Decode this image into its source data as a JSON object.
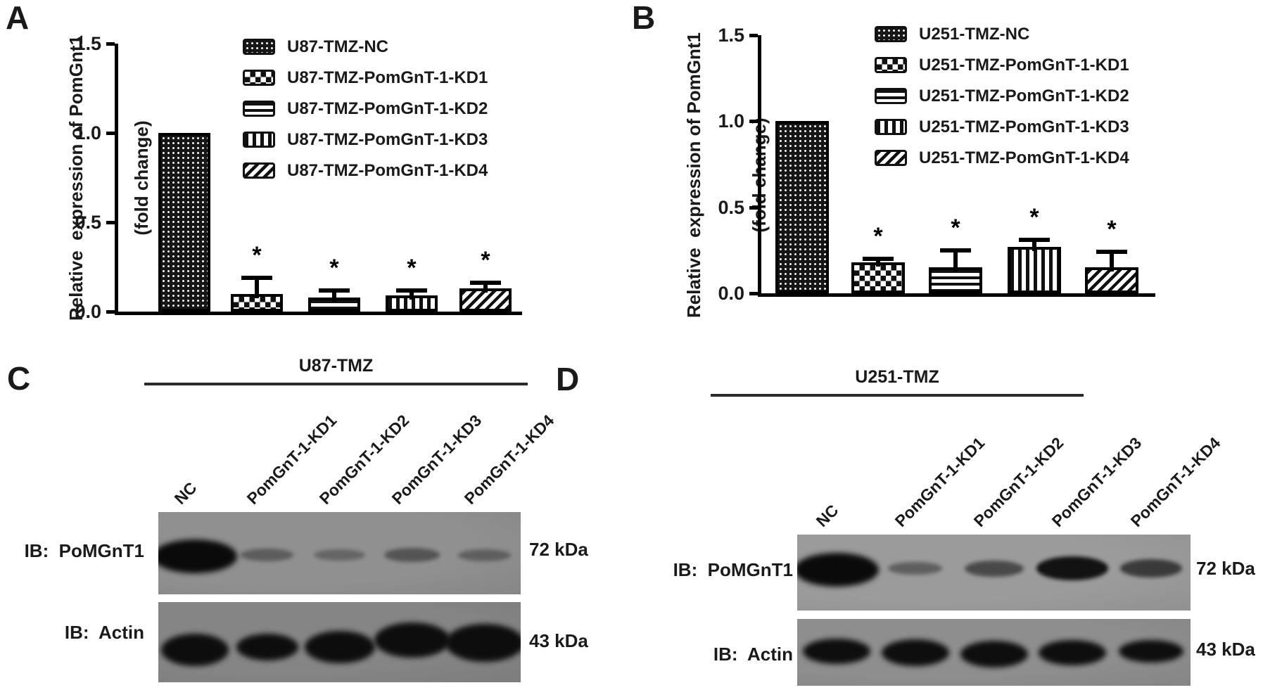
{
  "panels": {
    "a": {
      "label": "A",
      "ylabel_line1": "Relative  expression of PomGnt1",
      "ylabel_line2": "(fold change)",
      "yticks": [
        "1.5",
        "1.0",
        "0.5",
        "0.0"
      ],
      "legend": [
        "U87-TMZ-NC",
        "U87-TMZ-PomGnT-1-KD1",
        "U87-TMZ-PomGnT-1-KD2",
        "U87-TMZ-PomGnT-1-KD3",
        "U87-TMZ-PomGnT-1-KD4"
      ]
    },
    "b": {
      "label": "B",
      "ylabel_line1": "Relative  expression of PomGnt1",
      "ylabel_line2": "(fold change)",
      "yticks": [
        "1.5",
        "1.0",
        "0.5",
        "0.0"
      ],
      "legend": [
        "U251-TMZ-NC",
        "U251-TMZ-PomGnT-1-KD1",
        "U251-TMZ-PomGnT-1-KD2",
        "U251-TMZ-PomGnT-1-KD3",
        "U251-TMZ-PomGnT-1-KD4"
      ]
    },
    "c": {
      "label": "C",
      "title": "U87-TMZ",
      "lanes": [
        "NC",
        "PomGnT-1-KD1",
        "PomGnT-1-KD2",
        "PomGnT-1-KD3",
        "PomGnT-1-KD4"
      ],
      "rows": [
        {
          "label": "IB:  PoMGnT1",
          "marker": "72 kDa",
          "bands": [
            1.0,
            0.32,
            0.26,
            0.38,
            0.3
          ]
        },
        {
          "label": "IB:  Actin",
          "marker": "43 kDa",
          "bands": [
            1.0,
            1.0,
            1.0,
            1.0,
            1.0
          ]
        }
      ]
    },
    "d": {
      "label": "D",
      "title": "U251-TMZ",
      "lanes": [
        "NC",
        "PomGnT-1-KD1",
        "PomGnT-1-KD2",
        "PomGnT-1-KD3",
        "PomGnT-1-KD4"
      ],
      "rows": [
        {
          "label": "IB:  PoMGnT1",
          "marker": "72 kDa",
          "bands": [
            1.0,
            0.35,
            0.5,
            0.88,
            0.6
          ]
        },
        {
          "label": "IB:  Actin",
          "marker": "43 kDa",
          "bands": [
            1.0,
            1.0,
            1.0,
            1.0,
            1.0
          ]
        }
      ]
    }
  },
  "chart_data": [
    {
      "type": "bar",
      "panel": "A",
      "title": "",
      "categories": [
        "U87-TMZ-NC",
        "U87-TMZ-PomGnT-1-KD1",
        "U87-TMZ-PomGnT-1-KD2",
        "U87-TMZ-PomGnT-1-KD3",
        "U87-TMZ-PomGnT-1-KD4"
      ],
      "values": [
        1.0,
        0.1,
        0.08,
        0.09,
        0.13
      ],
      "errors": [
        0,
        0.09,
        0.04,
        0.03,
        0.03
      ],
      "significance": [
        "",
        "*",
        "*",
        "*",
        "*"
      ],
      "bar_patterns": [
        "fine-dots",
        "checker",
        "horizontal-lines",
        "vertical-lines",
        "diagonal-lines"
      ],
      "xlabel": "",
      "ylabel": "Relative expression of PomGnt1 (fold change)",
      "ylim": [
        0,
        1.5
      ],
      "yticks": [
        0.0,
        0.5,
        1.0,
        1.5
      ],
      "grid": false,
      "legend_position": "upper-right",
      "bar_color": "black-white-patterns"
    },
    {
      "type": "bar",
      "panel": "B",
      "title": "",
      "categories": [
        "U251-TMZ-NC",
        "U251-TMZ-PomGnT-1-KD1",
        "U251-TMZ-PomGnT-1-KD2",
        "U251-TMZ-PomGnT-1-KD3",
        "U251-TMZ-PomGnT-1-KD4"
      ],
      "values": [
        1.0,
        0.18,
        0.15,
        0.27,
        0.15
      ],
      "errors": [
        0,
        0.02,
        0.1,
        0.04,
        0.09
      ],
      "significance": [
        "",
        "*",
        "*",
        "*",
        "*"
      ],
      "bar_patterns": [
        "fine-dots",
        "checker",
        "horizontal-lines",
        "vertical-lines",
        "diagonal-lines"
      ],
      "xlabel": "",
      "ylabel": "Relative expression of PomGnt1 (fold change)",
      "ylim": [
        0,
        1.5
      ],
      "yticks": [
        0.0,
        0.5,
        1.0,
        1.5
      ],
      "grid": false,
      "legend_position": "upper-right",
      "bar_color": "black-white-patterns"
    }
  ],
  "colors": {
    "foreground": "#111111",
    "background": "#ffffff",
    "blot_gray_c_top": "#909090",
    "blot_gray_c_bottom": "#858585",
    "blot_gray_d_top": "#9b9b9b",
    "blot_gray_d_bottom": "#8e8e8e",
    "band_color": "#0a0a0a"
  }
}
